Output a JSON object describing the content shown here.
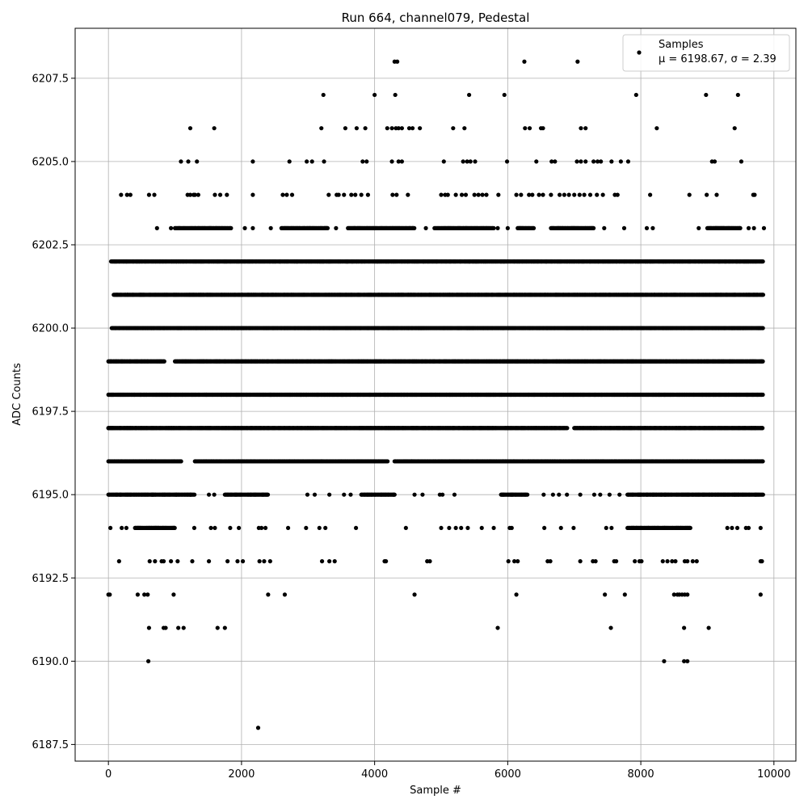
{
  "chart_data": {
    "type": "scatter",
    "title": "Run 664, channel079, Pedestal",
    "xlabel": "Sample #",
    "ylabel": "ADC Counts",
    "xlim": [
      -500,
      10330
    ],
    "ylim": [
      6187.0,
      6209.0
    ],
    "xticks": [
      0,
      2000,
      4000,
      6000,
      8000,
      10000
    ],
    "xtick_labels": [
      "0",
      "2000",
      "4000",
      "6000",
      "8000",
      "10000"
    ],
    "yticks": [
      6187.5,
      6190.0,
      6192.5,
      6195.0,
      6197.5,
      6200.0,
      6202.5,
      6205.0,
      6207.5
    ],
    "ytick_labels": [
      "6187.5",
      "6190.0",
      "6192.5",
      "6195.0",
      "6197.5",
      "6200.0",
      "6202.5",
      "6205.0",
      "6207.5"
    ],
    "grid": true,
    "legend": {
      "placement": "upper-right",
      "entries": [
        {
          "label": "Samples",
          "stats": "μ = 6198.67, σ = 2.39"
        }
      ]
    },
    "marker_color": "#000000",
    "n_samples_range": [
      0,
      9840
    ],
    "levels": [
      {
        "y": 6196,
        "segments": [
          [
            0,
            1100
          ],
          [
            1300,
            4200
          ],
          [
            4300,
            9840
          ]
        ]
      },
      {
        "y": 6197,
        "segments": [
          [
            0,
            4300
          ],
          [
            4300,
            6900
          ],
          [
            7000,
            9840
          ]
        ]
      },
      {
        "y": 6198,
        "segments": [
          [
            0,
            9840
          ]
        ]
      },
      {
        "y": 6199,
        "segments": [
          [
            0,
            850
          ],
          [
            1000,
            9840
          ]
        ]
      },
      {
        "y": 6200,
        "segments": [
          [
            50,
            9840
          ]
        ]
      },
      {
        "y": 6201,
        "segments": [
          [
            80,
            9840
          ]
        ]
      },
      {
        "y": 6202,
        "segments": [
          [
            40,
            9840
          ]
        ]
      },
      {
        "y": 6195,
        "segments": [
          [
            0,
            1300
          ],
          [
            1750,
            2400
          ],
          [
            3800,
            4300
          ],
          [
            5900,
            6300
          ],
          [
            7800,
            9840
          ]
        ]
      },
      {
        "y": 6203,
        "segments": [
          [
            1000,
            1850
          ],
          [
            2600,
            3300
          ],
          [
            3600,
            4600
          ],
          [
            4900,
            5800
          ],
          [
            6150,
            6400
          ],
          [
            6650,
            7300
          ],
          [
            9000,
            9500
          ]
        ]
      },
      {
        "y": 6194,
        "segments": [
          [
            400,
            1000
          ],
          [
            7800,
            8750
          ]
        ]
      }
    ],
    "scatter_points": [
      [
        0,
        6192
      ],
      [
        20,
        6192
      ],
      [
        600,
        6190
      ],
      [
        2250,
        6188
      ],
      [
        8350,
        6190
      ],
      [
        8650,
        6190
      ],
      [
        8700,
        6190
      ],
      [
        610,
        6191
      ],
      [
        830,
        6191
      ],
      [
        860,
        6191
      ],
      [
        1050,
        6191
      ],
      [
        1130,
        6191
      ],
      [
        1640,
        6191
      ],
      [
        1750,
        6191
      ],
      [
        5850,
        6191
      ],
      [
        7550,
        6191
      ],
      [
        8650,
        6191
      ],
      [
        9020,
        6191
      ],
      [
        440,
        6192
      ],
      [
        540,
        6192
      ],
      [
        590,
        6192
      ],
      [
        980,
        6192
      ],
      [
        2400,
        6192
      ],
      [
        2650,
        6192
      ],
      [
        4600,
        6192
      ],
      [
        6130,
        6192
      ],
      [
        7460,
        6192
      ],
      [
        7760,
        6192
      ],
      [
        8500,
        6192
      ],
      [
        8550,
        6192
      ],
      [
        8580,
        6192
      ],
      [
        8620,
        6192
      ],
      [
        8660,
        6192
      ],
      [
        8700,
        6192
      ],
      [
        9800,
        6192
      ],
      [
        160,
        6193
      ],
      [
        620,
        6193
      ],
      [
        700,
        6193
      ],
      [
        800,
        6193
      ],
      [
        830,
        6193
      ],
      [
        940,
        6193
      ],
      [
        1040,
        6193
      ],
      [
        1260,
        6193
      ],
      [
        1510,
        6193
      ],
      [
        1790,
        6193
      ],
      [
        1940,
        6193
      ],
      [
        2020,
        6193
      ],
      [
        2270,
        6193
      ],
      [
        2340,
        6193
      ],
      [
        2430,
        6193
      ],
      [
        3210,
        6193
      ],
      [
        3320,
        6193
      ],
      [
        3400,
        6193
      ],
      [
        4150,
        6193
      ],
      [
        4170,
        6193
      ],
      [
        4790,
        6193
      ],
      [
        4830,
        6193
      ],
      [
        6010,
        6193
      ],
      [
        6100,
        6193
      ],
      [
        6150,
        6193
      ],
      [
        6600,
        6193
      ],
      [
        6640,
        6193
      ],
      [
        7090,
        6193
      ],
      [
        7280,
        6193
      ],
      [
        7320,
        6193
      ],
      [
        7600,
        6193
      ],
      [
        7630,
        6193
      ],
      [
        7910,
        6193
      ],
      [
        7980,
        6193
      ],
      [
        8010,
        6193
      ],
      [
        8330,
        6193
      ],
      [
        8400,
        6193
      ],
      [
        8470,
        6193
      ],
      [
        8520,
        6193
      ],
      [
        8660,
        6193
      ],
      [
        8700,
        6193
      ],
      [
        8780,
        6193
      ],
      [
        8840,
        6193
      ],
      [
        9800,
        6193
      ],
      [
        9820,
        6193
      ],
      [
        30,
        6194
      ],
      [
        200,
        6194
      ],
      [
        270,
        6194
      ],
      [
        1290,
        6194
      ],
      [
        1540,
        6194
      ],
      [
        1600,
        6194
      ],
      [
        1830,
        6194
      ],
      [
        1960,
        6194
      ],
      [
        2260,
        6194
      ],
      [
        2300,
        6194
      ],
      [
        2360,
        6194
      ],
      [
        2700,
        6194
      ],
      [
        2970,
        6194
      ],
      [
        3170,
        6194
      ],
      [
        3260,
        6194
      ],
      [
        3720,
        6194
      ],
      [
        4470,
        6194
      ],
      [
        5000,
        6194
      ],
      [
        5120,
        6194
      ],
      [
        5220,
        6194
      ],
      [
        5300,
        6194
      ],
      [
        5400,
        6194
      ],
      [
        5610,
        6194
      ],
      [
        5790,
        6194
      ],
      [
        6030,
        6194
      ],
      [
        6060,
        6194
      ],
      [
        6550,
        6194
      ],
      [
        6800,
        6194
      ],
      [
        6990,
        6194
      ],
      [
        7480,
        6194
      ],
      [
        7560,
        6194
      ],
      [
        9300,
        6194
      ],
      [
        9370,
        6194
      ],
      [
        9450,
        6194
      ],
      [
        9580,
        6194
      ],
      [
        9620,
        6194
      ],
      [
        9800,
        6194
      ],
      [
        1230,
        6195
      ],
      [
        1510,
        6195
      ],
      [
        1590,
        6195
      ],
      [
        2990,
        6195
      ],
      [
        3100,
        6195
      ],
      [
        3320,
        6195
      ],
      [
        3540,
        6195
      ],
      [
        3640,
        6195
      ],
      [
        4600,
        6195
      ],
      [
        4720,
        6195
      ],
      [
        4980,
        6195
      ],
      [
        5020,
        6195
      ],
      [
        5200,
        6195
      ],
      [
        6540,
        6195
      ],
      [
        6680,
        6195
      ],
      [
        6770,
        6195
      ],
      [
        6890,
        6195
      ],
      [
        7090,
        6195
      ],
      [
        7300,
        6195
      ],
      [
        7390,
        6195
      ],
      [
        7530,
        6195
      ],
      [
        7680,
        6195
      ],
      [
        0,
        6197
      ],
      [
        50,
        6198
      ],
      [
        4480,
        6196
      ],
      [
        4560,
        6196
      ],
      [
        5180,
        6196
      ],
      [
        5280,
        6196
      ],
      [
        730,
        6203
      ],
      [
        940,
        6203
      ],
      [
        2050,
        6203
      ],
      [
        2170,
        6203
      ],
      [
        2440,
        6203
      ],
      [
        3420,
        6203
      ],
      [
        4770,
        6203
      ],
      [
        5850,
        6203
      ],
      [
        6000,
        6203
      ],
      [
        7450,
        6203
      ],
      [
        7750,
        6203
      ],
      [
        8090,
        6203
      ],
      [
        8180,
        6203
      ],
      [
        8870,
        6203
      ],
      [
        9620,
        6203
      ],
      [
        9700,
        6203
      ],
      [
        9850,
        6203
      ],
      [
        190,
        6204
      ],
      [
        280,
        6204
      ],
      [
        330,
        6204
      ],
      [
        610,
        6204
      ],
      [
        690,
        6204
      ],
      [
        1190,
        6204
      ],
      [
        1230,
        6204
      ],
      [
        1280,
        6204
      ],
      [
        1300,
        6204
      ],
      [
        1350,
        6204
      ],
      [
        1600,
        6204
      ],
      [
        1680,
        6204
      ],
      [
        1780,
        6204
      ],
      [
        2170,
        6204
      ],
      [
        2620,
        6204
      ],
      [
        2680,
        6204
      ],
      [
        2760,
        6204
      ],
      [
        3310,
        6204
      ],
      [
        3430,
        6204
      ],
      [
        3460,
        6204
      ],
      [
        3540,
        6204
      ],
      [
        3650,
        6204
      ],
      [
        3710,
        6204
      ],
      [
        3800,
        6204
      ],
      [
        3900,
        6204
      ],
      [
        4270,
        6204
      ],
      [
        4330,
        6204
      ],
      [
        4500,
        6204
      ],
      [
        5000,
        6204
      ],
      [
        5060,
        6204
      ],
      [
        5100,
        6204
      ],
      [
        5220,
        6204
      ],
      [
        5310,
        6204
      ],
      [
        5370,
        6204
      ],
      [
        5500,
        6204
      ],
      [
        5560,
        6204
      ],
      [
        5620,
        6204
      ],
      [
        5680,
        6204
      ],
      [
        5860,
        6204
      ],
      [
        6130,
        6204
      ],
      [
        6200,
        6204
      ],
      [
        6320,
        6204
      ],
      [
        6370,
        6204
      ],
      [
        6470,
        6204
      ],
      [
        6530,
        6204
      ],
      [
        6650,
        6204
      ],
      [
        6780,
        6204
      ],
      [
        6850,
        6204
      ],
      [
        6920,
        6204
      ],
      [
        7000,
        6204
      ],
      [
        7080,
        6204
      ],
      [
        7150,
        6204
      ],
      [
        7240,
        6204
      ],
      [
        7340,
        6204
      ],
      [
        7430,
        6204
      ],
      [
        7610,
        6204
      ],
      [
        7650,
        6204
      ],
      [
        8140,
        6204
      ],
      [
        8730,
        6204
      ],
      [
        8990,
        6204
      ],
      [
        9140,
        6204
      ],
      [
        9690,
        6204
      ],
      [
        9710,
        6204
      ],
      [
        1090,
        6205
      ],
      [
        1200,
        6205
      ],
      [
        1330,
        6205
      ],
      [
        2170,
        6205
      ],
      [
        2720,
        6205
      ],
      [
        2980,
        6205
      ],
      [
        3060,
        6205
      ],
      [
        3240,
        6205
      ],
      [
        3820,
        6205
      ],
      [
        3880,
        6205
      ],
      [
        4260,
        6205
      ],
      [
        4360,
        6205
      ],
      [
        4410,
        6205
      ],
      [
        5040,
        6205
      ],
      [
        5330,
        6205
      ],
      [
        5390,
        6205
      ],
      [
        5440,
        6205
      ],
      [
        5510,
        6205
      ],
      [
        5990,
        6205
      ],
      [
        6430,
        6205
      ],
      [
        6660,
        6205
      ],
      [
        6710,
        6205
      ],
      [
        7040,
        6205
      ],
      [
        7100,
        6205
      ],
      [
        7170,
        6205
      ],
      [
        7290,
        6205
      ],
      [
        7350,
        6205
      ],
      [
        7400,
        6205
      ],
      [
        7560,
        6205
      ],
      [
        7700,
        6205
      ],
      [
        7810,
        6205
      ],
      [
        9070,
        6205
      ],
      [
        9110,
        6205
      ],
      [
        9510,
        6205
      ],
      [
        1230,
        6206
      ],
      [
        1590,
        6206
      ],
      [
        3200,
        6206
      ],
      [
        3560,
        6206
      ],
      [
        3730,
        6206
      ],
      [
        3860,
        6206
      ],
      [
        4190,
        6206
      ],
      [
        4260,
        6206
      ],
      [
        4320,
        6206
      ],
      [
        4360,
        6206
      ],
      [
        4410,
        6206
      ],
      [
        4520,
        6206
      ],
      [
        4570,
        6206
      ],
      [
        4680,
        6206
      ],
      [
        5180,
        6206
      ],
      [
        5350,
        6206
      ],
      [
        6260,
        6206
      ],
      [
        6330,
        6206
      ],
      [
        6500,
        6206
      ],
      [
        6530,
        6206
      ],
      [
        7100,
        6206
      ],
      [
        7170,
        6206
      ],
      [
        8240,
        6206
      ],
      [
        9410,
        6206
      ],
      [
        3230,
        6207
      ],
      [
        4000,
        6207
      ],
      [
        4310,
        6207
      ],
      [
        5420,
        6207
      ],
      [
        5950,
        6207
      ],
      [
        7930,
        6207
      ],
      [
        8980,
        6207
      ],
      [
        9460,
        6207
      ],
      [
        4300,
        6208
      ],
      [
        4340,
        6208
      ],
      [
        6250,
        6208
      ],
      [
        7050,
        6208
      ]
    ]
  }
}
